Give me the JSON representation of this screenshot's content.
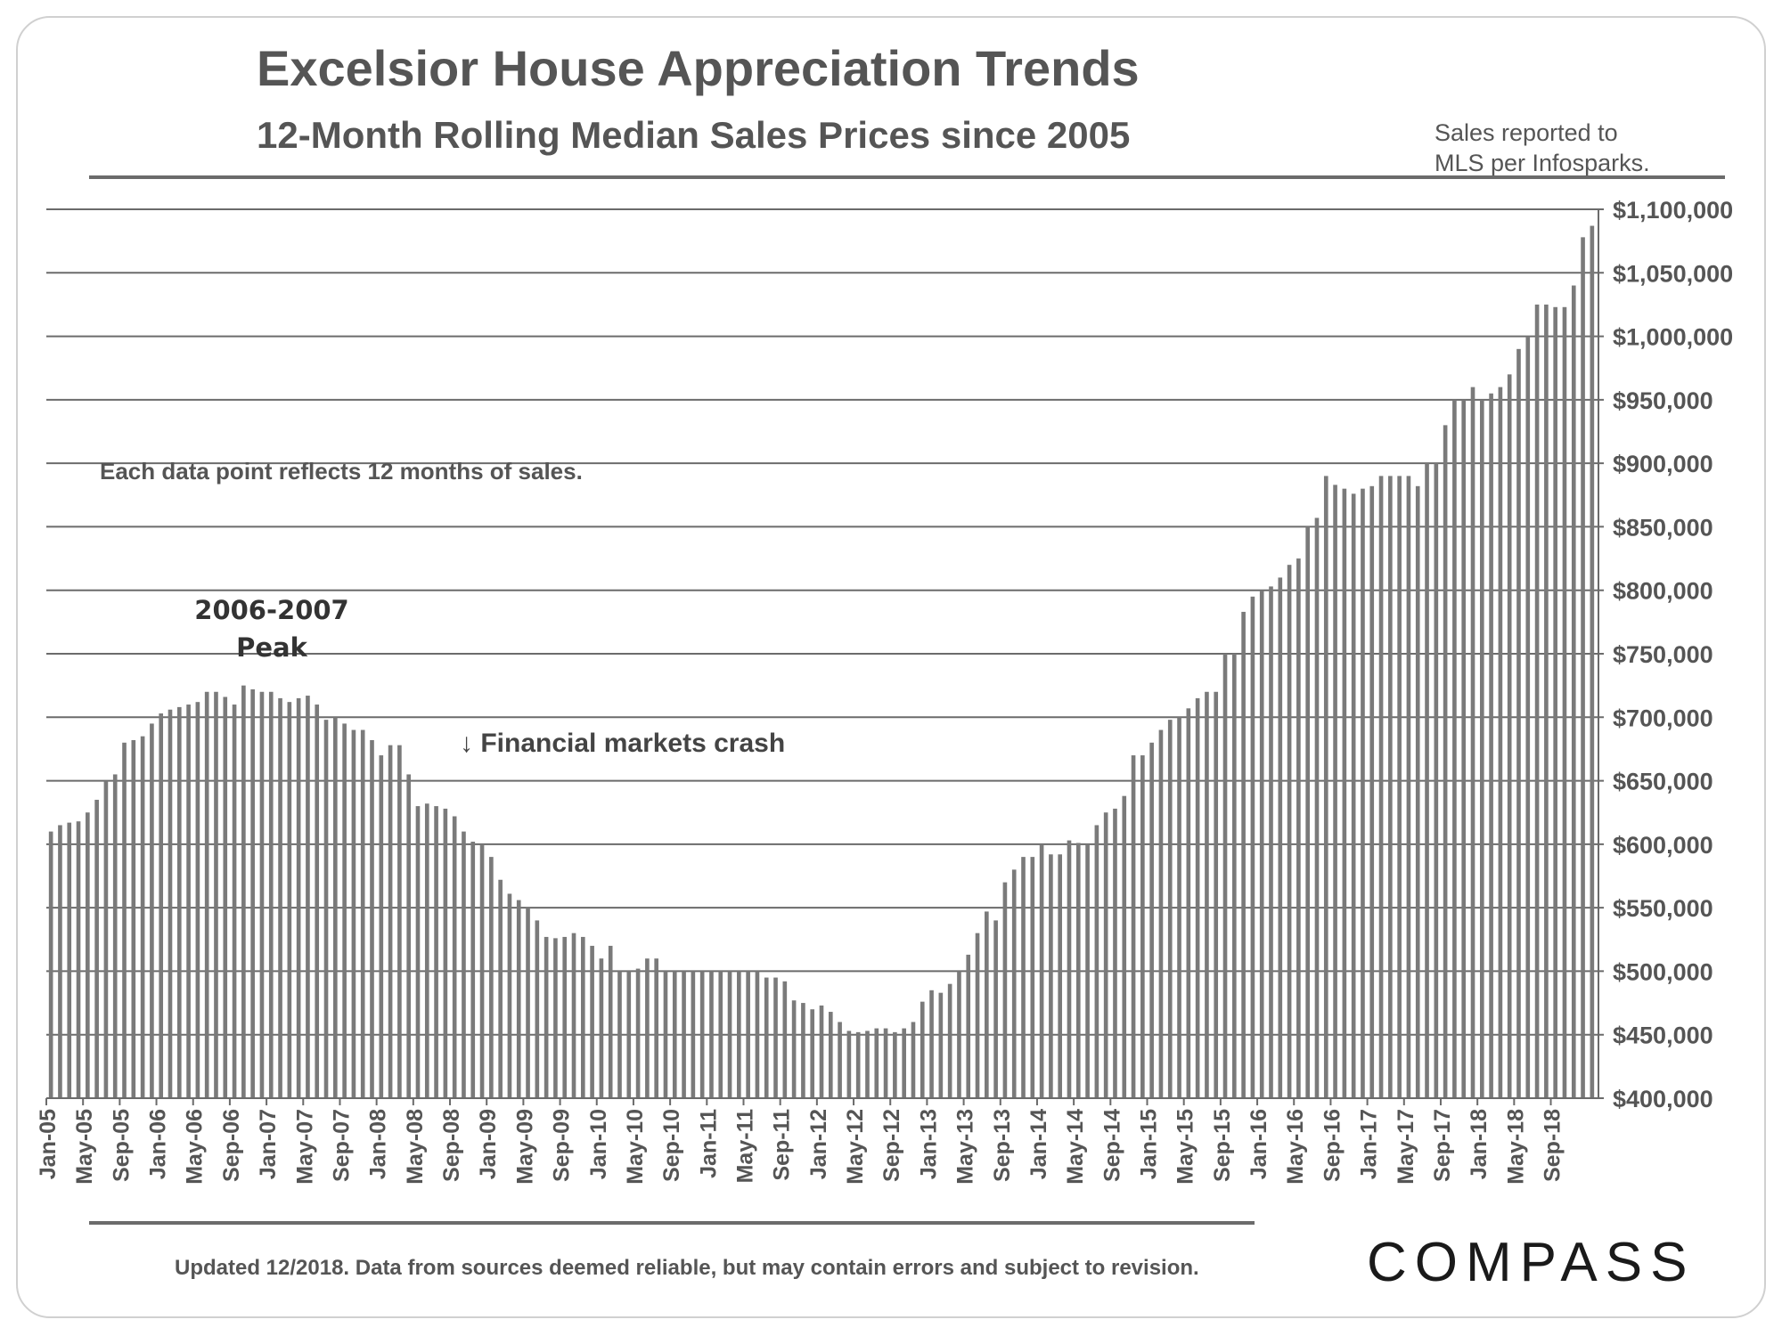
{
  "header": {
    "title": "Excelsior House Appreciation Trends",
    "subtitle": "12-Month Rolling Median Sales Prices since 2005",
    "source_line1": "Sales reported to",
    "source_line2": "MLS per Infosparks."
  },
  "annotations": {
    "note": "Each data point reflects 12 months of sales.",
    "crash_arrow": "↓",
    "crash": "Financial markets crash",
    "peak_line1": "2006-2007",
    "peak_line2": "Peak"
  },
  "footer": {
    "disclaimer": "Updated 12/2018. Data from sources deemed reliable, but may contain errors and subject to revision.",
    "logo": "COMPASS"
  },
  "colors": {
    "bar": "#7a7a7a",
    "grid": "#6b6b6b",
    "text": "#555555"
  },
  "chart_data": {
    "type": "bar",
    "title": "Excelsior House Appreciation Trends",
    "subtitle": "12-Month Rolling Median Sales Prices since 2005",
    "xlabel": "",
    "ylabel": "",
    "ylim": [
      400000,
      1100000
    ],
    "yticks": [
      400000,
      450000,
      500000,
      550000,
      600000,
      650000,
      700000,
      750000,
      800000,
      850000,
      900000,
      950000,
      1000000,
      1050000,
      1100000
    ],
    "ytick_labels": [
      "$400,000",
      "$450,000",
      "$500,000",
      "$550,000",
      "$600,000",
      "$650,000",
      "$700,000",
      "$750,000",
      "$800,000",
      "$850,000",
      "$900,000",
      "$950,000",
      "$1,000,000",
      "$1,050,000",
      "$1,100,000"
    ],
    "grid": true,
    "xtick_labels": [
      "Jan-05",
      "May-05",
      "Sep-05",
      "Jan-06",
      "May-06",
      "Sep-06",
      "Jan-07",
      "May-07",
      "Sep-07",
      "Jan-08",
      "May-08",
      "Sep-08",
      "Jan-09",
      "May-09",
      "Sep-09",
      "Jan-10",
      "May-10",
      "Sep-10",
      "Jan-11",
      "May-11",
      "Sep-11",
      "Jan-12",
      "May-12",
      "Sep-12",
      "Jan-13",
      "May-13",
      "Sep-13",
      "Jan-14",
      "May-14",
      "Sep-14",
      "Jan-15",
      "May-15",
      "Sep-15",
      "Jan-16",
      "May-16",
      "Sep-16",
      "Jan-17",
      "May-17",
      "Sep-17",
      "Jan-18",
      "May-18",
      "Sep-18"
    ],
    "start_month": "Jan-05",
    "values": [
      610000,
      615000,
      617000,
      618000,
      625000,
      635000,
      650000,
      655000,
      680000,
      682000,
      685000,
      695000,
      703000,
      706000,
      708000,
      710000,
      712000,
      720000,
      720000,
      716000,
      710000,
      725000,
      722000,
      720000,
      720000,
      715000,
      712000,
      715000,
      717000,
      710000,
      698000,
      700000,
      695000,
      690000,
      690000,
      682000,
      670000,
      678000,
      678000,
      655000,
      630000,
      632000,
      630000,
      628000,
      622000,
      610000,
      602000,
      600000,
      590000,
      572000,
      561000,
      556000,
      550000,
      540000,
      527000,
      526000,
      527000,
      530000,
      527000,
      520000,
      510000,
      520000,
      500000,
      500000,
      502000,
      510000,
      510000,
      500000,
      500000,
      500000,
      500000,
      500000,
      500000,
      500000,
      500000,
      500000,
      500000,
      500000,
      495000,
      495000,
      492000,
      477000,
      475000,
      470000,
      473000,
      468000,
      460000,
      453000,
      452000,
      453000,
      455000,
      455000,
      452000,
      455000,
      460000,
      476000,
      485000,
      483000,
      490000,
      500000,
      513000,
      530000,
      547000,
      540000,
      570000,
      580000,
      590000,
      590000,
      600000,
      592000,
      592000,
      603000,
      601000,
      600000,
      615000,
      625000,
      628000,
      638000,
      670000,
      670000,
      680000,
      690000,
      698000,
      700000,
      707000,
      715000,
      720000,
      720000,
      750000,
      750000,
      783000,
      795000,
      800000,
      803000,
      810000,
      820000,
      825000,
      850000,
      857000,
      890000,
      883000,
      880000,
      876000,
      880000,
      882000,
      890000,
      890000,
      890000,
      890000,
      882000,
      900000,
      900000,
      930000,
      950000,
      950000,
      960000,
      950000,
      955000,
      960000,
      970000,
      990000,
      1000000,
      1025000,
      1025000,
      1023000,
      1023000,
      1040000,
      1078000,
      1087000
    ]
  }
}
